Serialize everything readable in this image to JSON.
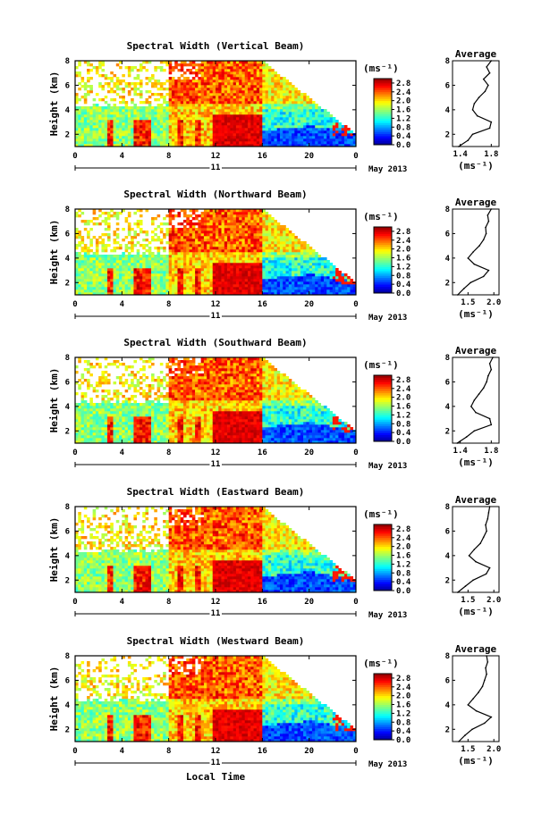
{
  "figure": {
    "xlabel": "Local Time",
    "date_label": "May 2013",
    "day_label": "11"
  },
  "chart_data": [
    {
      "type": "heatmap",
      "title": "Spectral Width (Vertical Beam)",
      "ylabel": "Height (km)",
      "x_ticks": [
        "0",
        "4",
        "8",
        "12",
        "16",
        "20",
        "0"
      ],
      "y_ticks": [
        "2",
        "4",
        "6",
        "8"
      ],
      "xlim": [
        0,
        24
      ],
      "ylim": [
        1,
        8
      ],
      "colorbar": {
        "unit": "(ms⁻¹)",
        "ticks": [
          "0.0",
          "0.4",
          "0.8",
          "1.2",
          "1.6",
          "2.0",
          "2.4",
          "2.8"
        ],
        "range": [
          0,
          3.0
        ]
      },
      "profile": {
        "title": "Average",
        "xlabel": "(ms⁻¹)",
        "x_ticks": [
          "1.4",
          "1.8"
        ],
        "xlim": [
          1.3,
          1.9
        ],
        "y_ticks": [
          "2",
          "4",
          "6",
          "8"
        ],
        "heights": [
          1.0,
          1.5,
          2.0,
          2.5,
          3.0,
          3.5,
          4.0,
          4.5,
          5.0,
          5.5,
          6.0,
          6.5,
          7.0,
          7.5,
          8.0
        ],
        "values": [
          1.38,
          1.5,
          1.56,
          1.78,
          1.8,
          1.62,
          1.56,
          1.58,
          1.64,
          1.72,
          1.76,
          1.7,
          1.78,
          1.74,
          1.8
        ]
      }
    },
    {
      "type": "heatmap",
      "title": "Spectral Width (Northward Beam)",
      "ylabel": "Height (km)",
      "x_ticks": [
        "0",
        "4",
        "8",
        "12",
        "16",
        "20",
        "0"
      ],
      "y_ticks": [
        "2",
        "4",
        "6",
        "8"
      ],
      "xlim": [
        0,
        24
      ],
      "ylim": [
        1,
        8
      ],
      "colorbar": {
        "unit": "(ms⁻¹)",
        "ticks": [
          "0.0",
          "0.4",
          "0.8",
          "1.2",
          "1.6",
          "2.0",
          "2.4",
          "2.8"
        ],
        "range": [
          0,
          3.0
        ]
      },
      "profile": {
        "title": "Average",
        "xlabel": "(ms⁻¹)",
        "x_ticks": [
          "1.5",
          "2.0"
        ],
        "xlim": [
          1.2,
          2.1
        ],
        "y_ticks": [
          "2",
          "4",
          "6",
          "8"
        ],
        "heights": [
          1.0,
          1.5,
          2.0,
          2.5,
          3.0,
          3.5,
          4.0,
          4.5,
          5.0,
          5.5,
          6.0,
          6.5,
          7.0,
          7.5,
          8.0
        ],
        "values": [
          1.3,
          1.42,
          1.55,
          1.8,
          1.9,
          1.62,
          1.5,
          1.6,
          1.72,
          1.8,
          1.85,
          1.84,
          1.9,
          1.88,
          1.95
        ]
      }
    },
    {
      "type": "heatmap",
      "title": "Spectral Width (Southward Beam)",
      "ylabel": "Height (km)",
      "x_ticks": [
        "0",
        "4",
        "8",
        "12",
        "16",
        "20",
        "0"
      ],
      "y_ticks": [
        "2",
        "4",
        "6",
        "8"
      ],
      "xlim": [
        0,
        24
      ],
      "ylim": [
        1,
        8
      ],
      "colorbar": {
        "unit": "(ms⁻¹)",
        "ticks": [
          "0.0",
          "0.4",
          "0.8",
          "1.2",
          "1.6",
          "2.0",
          "2.4",
          "2.8"
        ],
        "range": [
          0,
          3.0
        ]
      },
      "profile": {
        "title": "Average",
        "xlabel": "(ms⁻¹)",
        "x_ticks": [
          "1.4",
          "1.8"
        ],
        "xlim": [
          1.3,
          1.9
        ],
        "y_ticks": [
          "2",
          "4",
          "6",
          "8"
        ],
        "heights": [
          1.0,
          1.5,
          2.0,
          2.5,
          3.0,
          3.5,
          4.0,
          4.5,
          5.0,
          5.5,
          6.0,
          6.5,
          7.0,
          7.5,
          8.0
        ],
        "values": [
          1.36,
          1.48,
          1.58,
          1.8,
          1.78,
          1.6,
          1.54,
          1.58,
          1.64,
          1.7,
          1.74,
          1.76,
          1.8,
          1.78,
          1.82
        ]
      }
    },
    {
      "type": "heatmap",
      "title": "Spectral Width (Eastward Beam)",
      "ylabel": "Height (km)",
      "x_ticks": [
        "0",
        "4",
        "8",
        "12",
        "16",
        "20",
        "0"
      ],
      "y_ticks": [
        "2",
        "4",
        "6",
        "8"
      ],
      "xlim": [
        0,
        24
      ],
      "ylim": [
        1,
        8
      ],
      "colorbar": {
        "unit": "(ms⁻¹)",
        "ticks": [
          "0.0",
          "0.4",
          "0.8",
          "1.2",
          "1.6",
          "2.0",
          "2.4",
          "2.8"
        ],
        "range": [
          0,
          3.0
        ]
      },
      "profile": {
        "title": "Average",
        "xlabel": "(ms⁻¹)",
        "x_ticks": [
          "1.5",
          "2.0"
        ],
        "xlim": [
          1.2,
          2.1
        ],
        "y_ticks": [
          "2",
          "4",
          "6",
          "8"
        ],
        "heights": [
          1.0,
          1.5,
          2.0,
          2.5,
          3.0,
          3.5,
          4.0,
          4.5,
          5.0,
          5.5,
          6.0,
          6.5,
          7.0,
          7.5,
          8.0
        ],
        "values": [
          1.3,
          1.45,
          1.6,
          1.85,
          1.92,
          1.65,
          1.52,
          1.62,
          1.74,
          1.8,
          1.86,
          1.84,
          1.88,
          1.9,
          1.92
        ]
      }
    },
    {
      "type": "heatmap",
      "title": "Spectral Width (Westward Beam)",
      "ylabel": "Height (km)",
      "x_ticks": [
        "0",
        "4",
        "8",
        "12",
        "16",
        "20",
        "0"
      ],
      "y_ticks": [
        "2",
        "4",
        "6",
        "8"
      ],
      "xlim": [
        0,
        24
      ],
      "ylim": [
        1,
        8
      ],
      "colorbar": {
        "unit": "(ms⁻¹)",
        "ticks": [
          "0.0",
          "0.4",
          "0.8",
          "1.2",
          "1.6",
          "2.0",
          "2.4",
          "2.8"
        ],
        "range": [
          0,
          3.0
        ]
      },
      "profile": {
        "title": "Average",
        "xlabel": "(ms⁻¹)",
        "x_ticks": [
          "1.5",
          "2.0"
        ],
        "xlim": [
          1.2,
          2.1
        ],
        "y_ticks": [
          "2",
          "4",
          "6",
          "8"
        ],
        "heights": [
          1.0,
          1.5,
          2.0,
          2.5,
          3.0,
          3.5,
          4.0,
          4.5,
          5.0,
          5.5,
          6.0,
          6.5,
          7.0,
          7.5,
          8.0
        ],
        "values": [
          1.32,
          1.44,
          1.58,
          1.82,
          1.95,
          1.66,
          1.5,
          1.6,
          1.7,
          1.78,
          1.82,
          1.86,
          1.84,
          1.88,
          1.86
        ]
      }
    }
  ]
}
